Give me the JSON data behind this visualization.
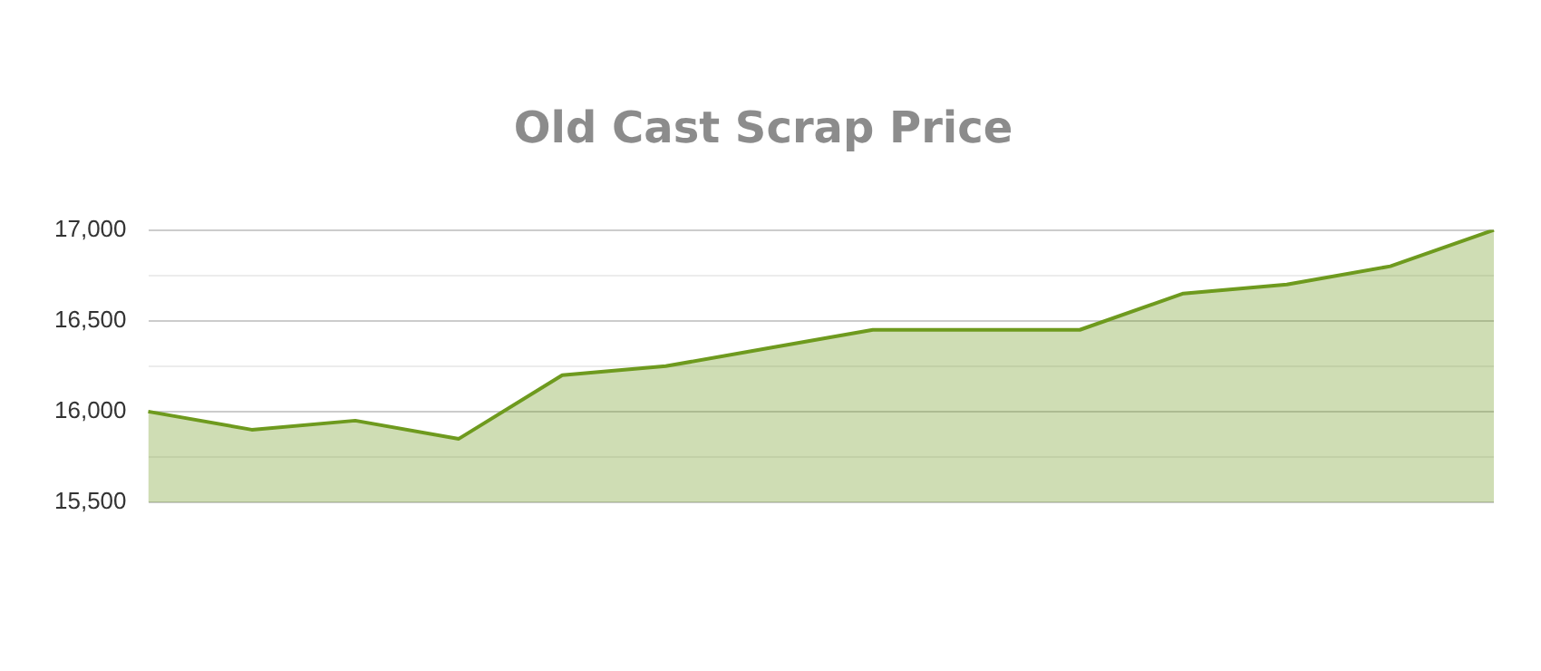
{
  "chart_data": {
    "type": "area",
    "title": "Old Cast Scrap Price",
    "categories": [
      null,
      null,
      null,
      null,
      null,
      null,
      null,
      null,
      null,
      null,
      null,
      null,
      null,
      null
    ],
    "series": [
      {
        "color": "#6e9a1e",
        "values": [
          16000,
          15900,
          15950,
          15850,
          16200,
          16250,
          16350,
          16450,
          16450,
          16450,
          16650,
          16700,
          16800,
          17000
        ]
      }
    ],
    "ylim": [
      15500,
      17000
    ],
    "yticks": [
      {
        "value": 15500,
        "label": "15,500"
      },
      {
        "value": 15750,
        "label": null
      },
      {
        "value": 16000,
        "label": "16,000"
      },
      {
        "value": 16250,
        "label": null
      },
      {
        "value": 16500,
        "label": "16,500"
      },
      {
        "value": 16750,
        "label": null
      },
      {
        "value": 17000,
        "label": "17,000"
      }
    ],
    "grid": "y",
    "legend": false,
    "tick_labels": "y",
    "marker": "none",
    "line_style": "solid"
  }
}
